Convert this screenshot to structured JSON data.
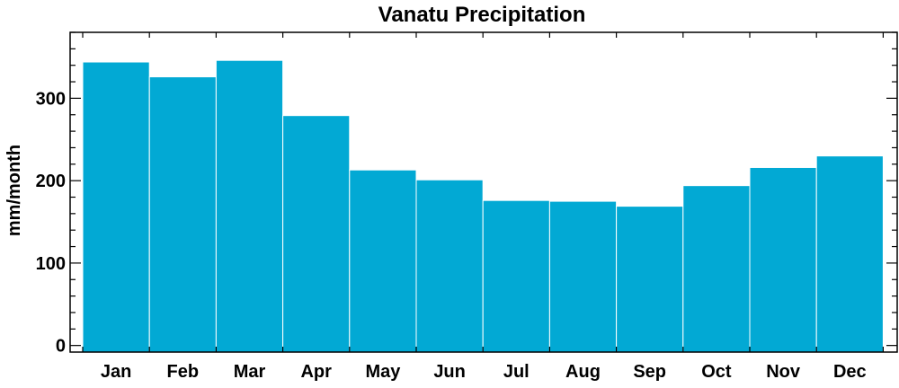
{
  "chart_data": {
    "type": "bar",
    "title": "Vanatu Precipitation",
    "xlabel": "",
    "ylabel": "mm/month",
    "categories": [
      "Jan",
      "Feb",
      "Mar",
      "Apr",
      "May",
      "Jun",
      "Jul",
      "Aug",
      "Sep",
      "Oct",
      "Nov",
      "Dec"
    ],
    "values": [
      344,
      326,
      346,
      279,
      213,
      201,
      176,
      175,
      169,
      194,
      216,
      230
    ],
    "ylim": [
      -8,
      380
    ],
    "yticks": [
      0,
      100,
      200,
      300
    ],
    "ytick_labels": [
      "0",
      "100",
      "200",
      "300"
    ],
    "bar_color": "#02A9D4",
    "bar_edge_color": "#ffffff",
    "grid": false,
    "legend": "none"
  }
}
